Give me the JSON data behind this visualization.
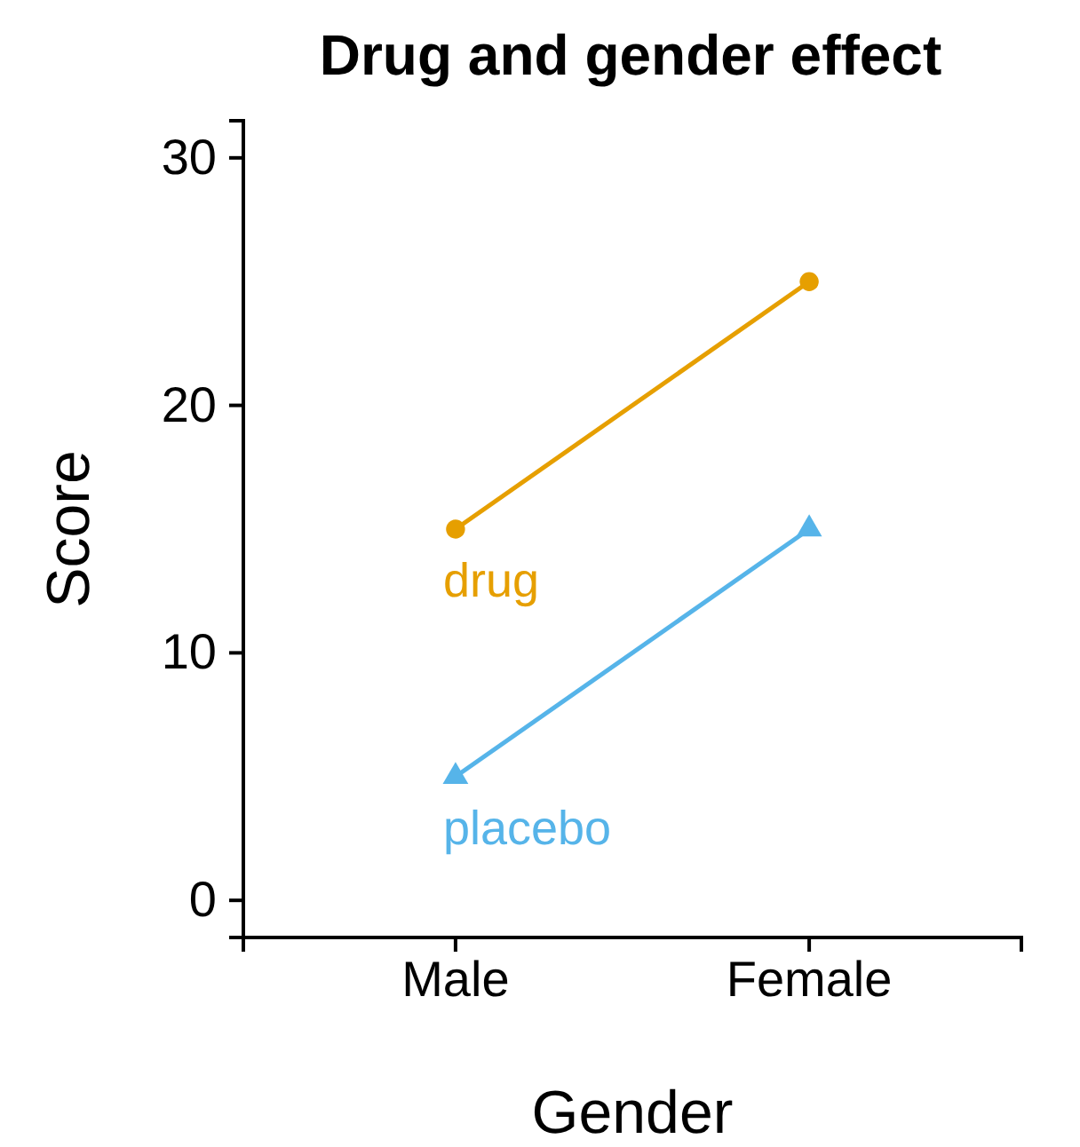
{
  "chart_data": {
    "type": "line",
    "title": "Drug and gender effect",
    "xlabel": "Gender",
    "ylabel": "Score",
    "categories": [
      "Male",
      "Female"
    ],
    "series": [
      {
        "name": "drug",
        "color": "#e69f00",
        "values": [
          15,
          25
        ],
        "marker": "circle"
      },
      {
        "name": "placebo",
        "color": "#56b4e9",
        "values": [
          5,
          15
        ],
        "marker": "triangle"
      }
    ],
    "ylim": [
      -1.5,
      31.5
    ],
    "yticks": [
      0,
      10,
      20,
      30
    ],
    "grid": false,
    "legend": false
  }
}
